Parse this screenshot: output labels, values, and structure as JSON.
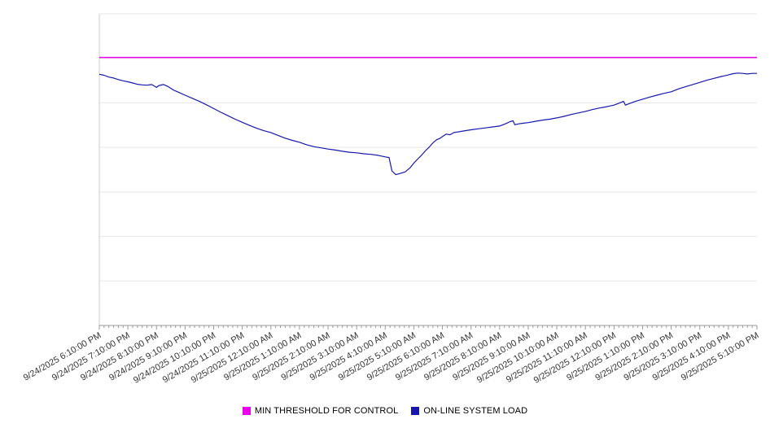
{
  "chart_data": {
    "type": "line",
    "title": "",
    "x_labels": [
      "9/24/2025 6:10:00 PM",
      "9/24/2025 7:10:00 PM",
      "9/24/2025 8:10:00 PM",
      "9/24/2025 9:10:00 PM",
      "9/24/2025 10:10:00 PM",
      "9/24/2025 11:10:00 PM",
      "9/25/2025 12:10:00 AM",
      "9/25/2025 1:10:00 AM",
      "9/25/2025 2:10:00 AM",
      "9/25/2025 3:10:00 AM",
      "9/25/2025 4:10:00 AM",
      "9/25/2025 5:10:00 AM",
      "9/25/2025 6:10:00 AM",
      "9/25/2025 7:10:00 AM",
      "9/25/2025 8:10:00 AM",
      "9/25/2025 9:10:00 AM",
      "9/25/2025 10:10:00 AM",
      "9/25/2025 11:10:00 AM",
      "9/25/2025 12:10:00 PM",
      "9/25/2025 1:10:00 PM",
      "9/25/2025 2:10:00 PM",
      "9/25/2025 3:10:00 PM",
      "9/25/2025 4:10:00 PM",
      "9/25/2025 5:10:00 PM"
    ],
    "x_label_interval_minutes": 60,
    "minor_tick_minutes": 10,
    "ylim": [
      0,
      100
    ],
    "grid_divisions": 7,
    "grid_on": true,
    "legend_position": "bottom",
    "series": [
      {
        "name": "MIN THRESHOLD FOR CONTROL",
        "style": "threshold",
        "color": "#ec00ec",
        "value": 86
      },
      {
        "name": "ON-LINE SYSTEM LOAD",
        "style": "line",
        "color": "#1717ad",
        "points": [
          [
            0,
            80.6
          ],
          [
            10,
            80.3
          ],
          [
            20,
            79.7
          ],
          [
            30,
            79.4
          ],
          [
            40,
            78.9
          ],
          [
            50,
            78.5
          ],
          [
            60,
            78.2
          ],
          [
            70,
            77.8
          ],
          [
            80,
            77.4
          ],
          [
            90,
            77.2
          ],
          [
            100,
            77.1
          ],
          [
            110,
            77.3
          ],
          [
            120,
            76.4
          ],
          [
            125,
            77.0
          ],
          [
            135,
            77.3
          ],
          [
            145,
            76.6
          ],
          [
            155,
            75.6
          ],
          [
            165,
            74.9
          ],
          [
            180,
            73.9
          ],
          [
            195,
            72.9
          ],
          [
            210,
            71.9
          ],
          [
            225,
            70.8
          ],
          [
            240,
            69.6
          ],
          [
            255,
            68.4
          ],
          [
            270,
            67.3
          ],
          [
            285,
            66.2
          ],
          [
            300,
            65.2
          ],
          [
            315,
            64.2
          ],
          [
            330,
            63.3
          ],
          [
            345,
            62.5
          ],
          [
            360,
            61.9
          ],
          [
            375,
            61.0
          ],
          [
            390,
            60.1
          ],
          [
            405,
            59.4
          ],
          [
            420,
            58.8
          ],
          [
            435,
            58.0
          ],
          [
            450,
            57.4
          ],
          [
            465,
            57.0
          ],
          [
            480,
            56.6
          ],
          [
            495,
            56.3
          ],
          [
            510,
            55.9
          ],
          [
            525,
            55.6
          ],
          [
            540,
            55.4
          ],
          [
            555,
            55.1
          ],
          [
            570,
            54.9
          ],
          [
            585,
            54.6
          ],
          [
            600,
            54.1
          ],
          [
            608,
            53.9
          ],
          [
            614,
            49.6
          ],
          [
            622,
            48.4
          ],
          [
            632,
            48.8
          ],
          [
            642,
            49.3
          ],
          [
            652,
            50.6
          ],
          [
            660,
            52.1
          ],
          [
            668,
            53.4
          ],
          [
            676,
            54.6
          ],
          [
            684,
            56.0
          ],
          [
            692,
            57.2
          ],
          [
            700,
            58.6
          ],
          [
            708,
            59.6
          ],
          [
            714,
            60.0
          ],
          [
            720,
            60.6
          ],
          [
            728,
            61.4
          ],
          [
            736,
            61.2
          ],
          [
            744,
            61.9
          ],
          [
            752,
            62.1
          ],
          [
            760,
            62.3
          ],
          [
            768,
            62.5
          ],
          [
            780,
            62.8
          ],
          [
            795,
            63.1
          ],
          [
            810,
            63.4
          ],
          [
            825,
            63.7
          ],
          [
            840,
            64.0
          ],
          [
            852,
            64.7
          ],
          [
            862,
            65.4
          ],
          [
            868,
            65.7
          ],
          [
            872,
            64.4
          ],
          [
            880,
            64.7
          ],
          [
            890,
            64.9
          ],
          [
            900,
            65.1
          ],
          [
            915,
            65.5
          ],
          [
            930,
            65.9
          ],
          [
            945,
            66.2
          ],
          [
            960,
            66.6
          ],
          [
            975,
            67.1
          ],
          [
            990,
            67.7
          ],
          [
            1005,
            68.2
          ],
          [
            1020,
            68.7
          ],
          [
            1035,
            69.3
          ],
          [
            1050,
            69.8
          ],
          [
            1065,
            70.2
          ],
          [
            1080,
            70.7
          ],
          [
            1090,
            71.3
          ],
          [
            1100,
            71.9
          ],
          [
            1104,
            70.7
          ],
          [
            1112,
            71.2
          ],
          [
            1125,
            71.9
          ],
          [
            1140,
            72.6
          ],
          [
            1155,
            73.3
          ],
          [
            1170,
            73.9
          ],
          [
            1185,
            74.5
          ],
          [
            1200,
            75.0
          ],
          [
            1215,
            75.9
          ],
          [
            1230,
            76.6
          ],
          [
            1245,
            77.3
          ],
          [
            1260,
            78.0
          ],
          [
            1275,
            78.7
          ],
          [
            1290,
            79.3
          ],
          [
            1305,
            79.9
          ],
          [
            1315,
            80.2
          ],
          [
            1320,
            80.4
          ],
          [
            1330,
            80.8
          ],
          [
            1340,
            81.0
          ],
          [
            1350,
            80.9
          ],
          [
            1360,
            80.7
          ],
          [
            1370,
            80.9
          ],
          [
            1380,
            80.9
          ]
        ]
      }
    ]
  },
  "legend": {
    "items": [
      {
        "label": "MIN THRESHOLD FOR CONTROL",
        "color": "#ec00ec"
      },
      {
        "label": "ON-LINE SYSTEM LOAD",
        "color": "#1717ad"
      }
    ]
  },
  "axes": {
    "axis_color": "#999999",
    "gridline_color": "#e7e7e7",
    "tick_label_color": "#333333"
  }
}
